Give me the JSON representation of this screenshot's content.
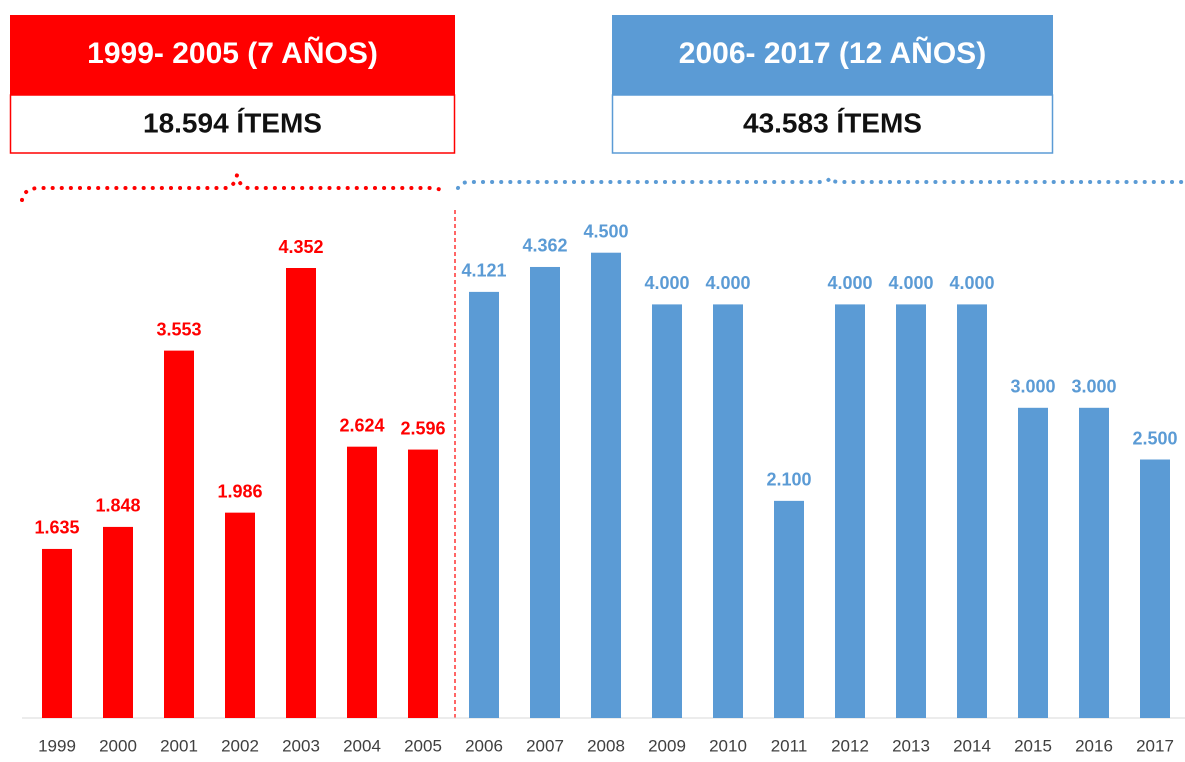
{
  "chart_data": {
    "type": "bar",
    "annotations": [
      {
        "title": "1999- 2005 (7 AÑOS)",
        "subtitle": "18.594 ÍTEMS",
        "color": "#ff0000"
      },
      {
        "title": "2006- 2017 (12 AÑOS)",
        "subtitle": "43.583 ÍTEMS",
        "color": "#5b9bd5"
      }
    ],
    "categories": [
      "1999",
      "2000",
      "2001",
      "2002",
      "2003",
      "2004",
      "2005",
      "2006",
      "2007",
      "2008",
      "2009",
      "2010",
      "2011",
      "2012",
      "2013",
      "2014",
      "2015",
      "2016",
      "2017"
    ],
    "values": [
      1635,
      1848,
      3553,
      1986,
      4352,
      2624,
      2596,
      4121,
      4362,
      4500,
      4000,
      4000,
      2100,
      4000,
      4000,
      4000,
      3000,
      3000,
      2500
    ],
    "value_labels": [
      "1.635",
      "1.848",
      "3.553",
      "1.986",
      "4.352",
      "2.624",
      "2.596",
      "4.121",
      "4.362",
      "4.500",
      "4.000",
      "4.000",
      "2.100",
      "4.000",
      "4.000",
      "4.000",
      "3.000",
      "3.000",
      "2.500"
    ],
    "colors": [
      "#ff0000",
      "#ff0000",
      "#ff0000",
      "#ff0000",
      "#ff0000",
      "#ff0000",
      "#ff0000",
      "#5b9bd5",
      "#5b9bd5",
      "#5b9bd5",
      "#5b9bd5",
      "#5b9bd5",
      "#5b9bd5",
      "#5b9bd5",
      "#5b9bd5",
      "#5b9bd5",
      "#5b9bd5",
      "#5b9bd5",
      "#5b9bd5"
    ],
    "ylim": [
      0,
      5000
    ]
  }
}
